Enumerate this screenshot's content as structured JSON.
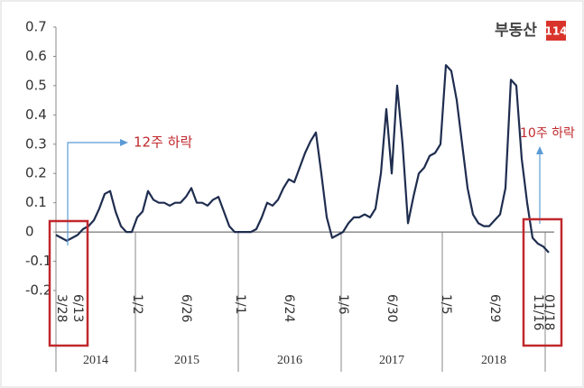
{
  "logo": {
    "name": "부동산",
    "number": "114"
  },
  "chart_data": {
    "type": "line",
    "categories": [
      null,
      "3/28",
      null,
      null,
      "6/13",
      null,
      null,
      null,
      null,
      null,
      null,
      null,
      null,
      null,
      null,
      "1/2",
      null,
      null,
      null,
      null,
      null,
      null,
      null,
      null,
      "6/26",
      null,
      null,
      null,
      null,
      null,
      null,
      null,
      null,
      null,
      "1/1",
      null,
      null,
      null,
      null,
      null,
      null,
      null,
      null,
      "6/24",
      null,
      null,
      null,
      null,
      null,
      null,
      null,
      null,
      null,
      "1/6",
      null,
      null,
      null,
      null,
      null,
      null,
      null,
      null,
      "6/30",
      null,
      null,
      null,
      null,
      null,
      null,
      null,
      null,
      null,
      "1/5",
      null,
      null,
      null,
      null,
      null,
      null,
      null,
      null,
      "6/29",
      null,
      null,
      null,
      null,
      null,
      null,
      null,
      "11/16",
      null,
      "01/18"
    ],
    "series": [
      {
        "color": "#1f2d4f",
        "values": [
          -0.01,
          -0.02,
          -0.03,
          -0.02,
          -0.01,
          0.01,
          0.02,
          0.04,
          0.08,
          0.13,
          0.14,
          0.07,
          0.02,
          0.0,
          0.0,
          0.05,
          0.07,
          0.14,
          0.11,
          0.1,
          0.1,
          0.09,
          0.1,
          0.1,
          0.12,
          0.15,
          0.1,
          0.1,
          0.09,
          0.11,
          0.12,
          0.07,
          0.02,
          0.0,
          0.0,
          0.0,
          0.0,
          0.01,
          0.05,
          0.1,
          0.09,
          0.11,
          0.15,
          0.18,
          0.17,
          0.22,
          0.27,
          0.31,
          0.34,
          0.2,
          0.05,
          -0.02,
          -0.01,
          0.0,
          0.03,
          0.05,
          0.05,
          0.06,
          0.05,
          0.08,
          0.2,
          0.42,
          0.2,
          0.5,
          0.3,
          0.03,
          0.12,
          0.2,
          0.22,
          0.26,
          0.27,
          0.3,
          0.57,
          0.55,
          0.45,
          0.3,
          0.15,
          0.06,
          0.03,
          0.02,
          0.02,
          0.04,
          0.06,
          0.15,
          0.52,
          0.5,
          0.25,
          0.1,
          -0.02,
          -0.04,
          -0.05,
          -0.07
        ]
      }
    ],
    "ylim": [
      -0.2,
      0.7
    ],
    "yticks": [
      -0.2,
      -0.1,
      0,
      0.1,
      0.2,
      0.3,
      0.4,
      0.5,
      0.6,
      0.7
    ],
    "x_groups": [
      "2014",
      "2015",
      "2016",
      "2017",
      "2018"
    ],
    "annotations": [
      "12주 하락",
      "10주 하락"
    ]
  }
}
